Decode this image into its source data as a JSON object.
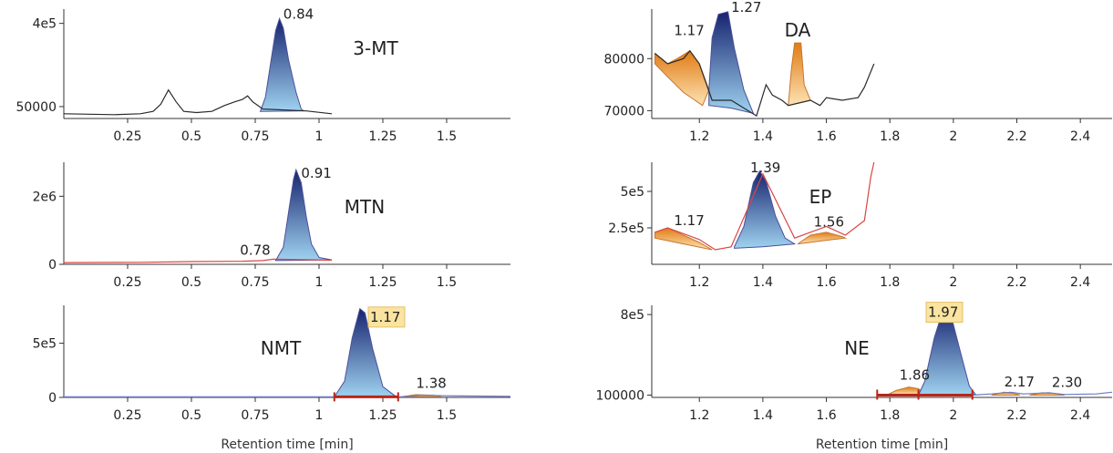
{
  "colors": {
    "blue_dark": "#16236e",
    "blue_light": "#9fd2f0",
    "orange_dark": "#e07b14",
    "orange_light": "#fde3b4",
    "trace_black": "#2a2a2a",
    "trace_red": "#d94646",
    "trace_blue": "#6b78c4",
    "integration_red": "#b8261a",
    "highlight_bg": "#fbe3a0"
  },
  "chart_data": [
    {
      "type": "line",
      "panel": "left-top",
      "compound": "3-MT",
      "xlim": [
        0,
        1.75
      ],
      "ylim": [
        0,
        460000
      ],
      "xticks": [
        "0.25",
        "0.5",
        "0.75",
        "1",
        "1.25",
        "1.5"
      ],
      "yticks": [
        {
          "value": 50000,
          "label": "50000"
        },
        {
          "value": 400000,
          "label": "4e5"
        }
      ],
      "trace_color": "black",
      "trace": [
        [
          0,
          20000
        ],
        [
          0.1,
          18000
        ],
        [
          0.2,
          16000
        ],
        [
          0.3,
          20000
        ],
        [
          0.35,
          30000
        ],
        [
          0.38,
          60000
        ],
        [
          0.41,
          120000
        ],
        [
          0.44,
          70000
        ],
        [
          0.47,
          30000
        ],
        [
          0.52,
          25000
        ],
        [
          0.58,
          30000
        ],
        [
          0.63,
          55000
        ],
        [
          0.67,
          70000
        ],
        [
          0.7,
          80000
        ],
        [
          0.72,
          95000
        ],
        [
          0.74,
          70000
        ],
        [
          0.78,
          40000
        ],
        [
          0.95,
          32000
        ],
        [
          1.05,
          20000
        ]
      ],
      "peaks": [
        {
          "label": "0.84",
          "color": "blue",
          "points": [
            [
              0.77,
              30000
            ],
            [
              0.79,
              90000
            ],
            [
              0.81,
              230000
            ],
            [
              0.83,
              370000
            ],
            [
              0.845,
              420000
            ],
            [
              0.86,
              380000
            ],
            [
              0.88,
              250000
            ],
            [
              0.91,
              110000
            ],
            [
              0.93,
              40000
            ],
            [
              0.94,
              32000
            ]
          ],
          "label_at": [
            0.86,
            420000
          ],
          "highlight": false
        }
      ],
      "xlabel": ""
    },
    {
      "type": "line",
      "panel": "left-middle",
      "compound": "MTN",
      "xlim": [
        0,
        1.75
      ],
      "ylim": [
        0,
        3000000
      ],
      "xticks": [
        "0.25",
        "0.5",
        "0.75",
        "1",
        "1.25",
        "1.5"
      ],
      "yticks": [
        {
          "value": 0,
          "label": "0"
        },
        {
          "value": 2000000,
          "label": "2e6"
        }
      ],
      "trace_color": "red",
      "trace": [
        [
          0,
          50000
        ],
        [
          0.3,
          60000
        ],
        [
          0.5,
          80000
        ],
        [
          0.7,
          90000
        ],
        [
          0.78,
          110000
        ],
        [
          0.82,
          150000
        ],
        [
          1.0,
          130000
        ],
        [
          1.05,
          120000
        ]
      ],
      "peaks": [
        {
          "label": "0.91",
          "color": "blue",
          "points": [
            [
              0.83,
              110000
            ],
            [
              0.86,
              500000
            ],
            [
              0.88,
              1500000
            ],
            [
              0.9,
              2500000
            ],
            [
              0.91,
              2780000
            ],
            [
              0.93,
              2400000
            ],
            [
              0.95,
              1400000
            ],
            [
              0.97,
              600000
            ],
            [
              1.0,
              200000
            ],
            [
              1.05,
              130000
            ]
          ],
          "label_at": [
            0.93,
            2550000
          ],
          "highlight": false
        }
      ],
      "extra_labels": [
        {
          "text": "0.78",
          "at": [
            0.75,
            280000
          ]
        }
      ],
      "xlabel": ""
    },
    {
      "type": "line",
      "panel": "left-bottom",
      "compound": "NMT",
      "xlim": [
        0,
        1.75
      ],
      "ylim": [
        0,
        850000
      ],
      "xticks": [
        "0.25",
        "0.5",
        "0.75",
        "1",
        "1.25",
        "1.5"
      ],
      "yticks": [
        {
          "value": 0,
          "label": "0"
        },
        {
          "value": 500000,
          "label": "5e5"
        }
      ],
      "trace_color": "blue",
      "trace": [
        [
          0,
          5000
        ],
        [
          1.0,
          5000
        ],
        [
          1.32,
          5000
        ],
        [
          1.4,
          20000
        ],
        [
          1.5,
          15000
        ],
        [
          1.75,
          10000
        ]
      ],
      "peaks": [
        {
          "label": "1.17",
          "color": "blue",
          "points": [
            [
              1.06,
              5000
            ],
            [
              1.1,
              150000
            ],
            [
              1.13,
              550000
            ],
            [
              1.16,
              820000
            ],
            [
              1.18,
              780000
            ],
            [
              1.21,
              450000
            ],
            [
              1.25,
              100000
            ],
            [
              1.3,
              10000
            ]
          ],
          "label_at": [
            1.2,
            700000
          ],
          "highlight": true
        },
        {
          "label": "1.38",
          "color": "orange",
          "points": [
            [
              1.32,
              5000
            ],
            [
              1.38,
              25000
            ],
            [
              1.45,
              20000
            ],
            [
              1.48,
              5000
            ]
          ],
          "label_at": [
            1.38,
            90000
          ],
          "highlight": false
        }
      ],
      "xlabel": "Retention time [min]"
    },
    {
      "type": "line",
      "panel": "right-top",
      "compound": "DA",
      "xlim": [
        1.05,
        2.5
      ],
      "ylim": [
        68500,
        89500
      ],
      "xticks": [
        "1.2",
        "1.4",
        "1.6",
        "1.8",
        "2",
        "2.2",
        "2.4"
      ],
      "yticks": [
        {
          "value": 70000,
          "label": "70000"
        },
        {
          "value": 80000,
          "label": "80000"
        }
      ],
      "trace_color": "black",
      "trace": [
        [
          1.06,
          81000
        ],
        [
          1.1,
          79000
        ],
        [
          1.15,
          80000
        ],
        [
          1.17,
          81500
        ],
        [
          1.2,
          79000
        ],
        [
          1.24,
          72000
        ],
        [
          1.3,
          72000
        ],
        [
          1.38,
          69000
        ],
        [
          1.4,
          73000
        ],
        [
          1.41,
          75000
        ],
        [
          1.43,
          73000
        ],
        [
          1.46,
          72000
        ],
        [
          1.48,
          71000
        ],
        [
          1.55,
          72000
        ],
        [
          1.58,
          71000
        ],
        [
          1.6,
          72500
        ],
        [
          1.65,
          72000
        ],
        [
          1.7,
          72500
        ],
        [
          1.72,
          74500
        ],
        [
          1.75,
          79000
        ]
      ],
      "peaks": [
        {
          "label": "1.17",
          "color": "orange",
          "points": [
            [
              1.06,
              81000
            ],
            [
              1.1,
              79000
            ],
            [
              1.13,
              80000
            ],
            [
              1.17,
              81500
            ],
            [
              1.2,
              79000
            ],
            [
              1.23,
              74000
            ],
            [
              1.21,
              71000
            ],
            [
              1.15,
              73500
            ],
            [
              1.1,
              76500
            ],
            [
              1.06,
              79000
            ]
          ],
          "label_at": [
            1.12,
            84500
          ],
          "highlight": false
        },
        {
          "label": "1.27",
          "color": "blue",
          "points": [
            [
              1.23,
              74000
            ],
            [
              1.24,
              84000
            ],
            [
              1.26,
              88500
            ],
            [
              1.29,
              89000
            ],
            [
              1.31,
              82000
            ],
            [
              1.34,
              74000
            ],
            [
              1.37,
              69500
            ],
            [
              1.3,
              70500
            ],
            [
              1.23,
              71000
            ]
          ],
          "label_at": [
            1.3,
            89000
          ],
          "highlight": false
        },
        {
          "label": "",
          "color": "orange",
          "points": [
            [
              1.48,
              71000
            ],
            [
              1.49,
              78000
            ],
            [
              1.5,
              83000
            ],
            [
              1.52,
              83000
            ],
            [
              1.53,
              75000
            ],
            [
              1.55,
              72000
            ],
            [
              1.48,
              71000
            ]
          ],
          "label_at": [
            1.5,
            84000
          ],
          "highlight": false
        }
      ],
      "xlabel": ""
    },
    {
      "type": "line",
      "panel": "right-middle",
      "compound": "EP",
      "xlim": [
        1.05,
        2.5
      ],
      "ylim": [
        0,
        700000
      ],
      "xticks": [
        "1.2",
        "1.4",
        "1.6",
        "1.8",
        "2",
        "2.2",
        "2.4"
      ],
      "yticks": [
        {
          "value": 250000,
          "label": "2.5e5"
        },
        {
          "value": 500000,
          "label": "5e5"
        }
      ],
      "trace_color": "red",
      "trace": [
        [
          1.06,
          220000
        ],
        [
          1.1,
          250000
        ],
        [
          1.2,
          170000
        ],
        [
          1.25,
          100000
        ],
        [
          1.3,
          120000
        ],
        [
          1.4,
          620000
        ],
        [
          1.5,
          180000
        ],
        [
          1.6,
          260000
        ],
        [
          1.66,
          200000
        ],
        [
          1.72,
          300000
        ],
        [
          1.74,
          600000
        ],
        [
          1.75,
          700000
        ]
      ],
      "peaks": [
        {
          "label": "1.17",
          "color": "orange",
          "points": [
            [
              1.06,
              220000
            ],
            [
              1.1,
              250000
            ],
            [
              1.15,
              200000
            ],
            [
              1.2,
              150000
            ],
            [
              1.24,
              100000
            ],
            [
              1.15,
              140000
            ],
            [
              1.06,
              180000
            ]
          ],
          "label_at": [
            1.12,
            270000
          ],
          "highlight": false
        },
        {
          "label": "1.39",
          "color": "blue",
          "points": [
            [
              1.31,
              120000
            ],
            [
              1.34,
              260000
            ],
            [
              1.37,
              560000
            ],
            [
              1.39,
              640000
            ],
            [
              1.41,
              570000
            ],
            [
              1.44,
              330000
            ],
            [
              1.47,
              180000
            ],
            [
              1.5,
              140000
            ],
            [
              1.4,
              120000
            ],
            [
              1.31,
              110000
            ]
          ],
          "label_at": [
            1.36,
            630000
          ],
          "highlight": false
        },
        {
          "label": "1.56",
          "color": "orange",
          "points": [
            [
              1.51,
              140000
            ],
            [
              1.55,
              200000
            ],
            [
              1.6,
              220000
            ],
            [
              1.65,
              190000
            ],
            [
              1.66,
              180000
            ],
            [
              1.6,
              165000
            ],
            [
              1.51,
              140000
            ]
          ],
          "label_at": [
            1.56,
            260000
          ],
          "highlight": false
        }
      ],
      "xlabel": ""
    },
    {
      "type": "line",
      "panel": "right-bottom",
      "compound": "NE",
      "xlim": [
        1.05,
        2.5
      ],
      "ylim": [
        80000,
        880000
      ],
      "xticks": [
        "1.2",
        "1.4",
        "1.6",
        "1.8",
        "2",
        "2.2",
        "2.4"
      ],
      "yticks": [
        {
          "value": 100000,
          "label": "100000"
        },
        {
          "value": 800000,
          "label": "8e5"
        }
      ],
      "trace_color": "blue",
      "trace": [
        [
          1.76,
          100000
        ],
        [
          2.06,
          100000
        ],
        [
          2.12,
          110000
        ],
        [
          2.18,
          125000
        ],
        [
          2.22,
          110000
        ],
        [
          2.3,
          120000
        ],
        [
          2.35,
          105000
        ],
        [
          2.45,
          110000
        ],
        [
          2.5,
          125000
        ]
      ],
      "peaks": [
        {
          "label": "1.86",
          "color": "orange",
          "points": [
            [
              1.79,
              100000
            ],
            [
              1.82,
              140000
            ],
            [
              1.86,
              170000
            ],
            [
              1.89,
              155000
            ],
            [
              1.91,
              110000
            ],
            [
              1.79,
              100000
            ]
          ],
          "label_at": [
            1.83,
            235000
          ],
          "highlight": false
        },
        {
          "label": "1.97",
          "color": "blue",
          "points": [
            [
              1.89,
              100000
            ],
            [
              1.91,
              220000
            ],
            [
              1.94,
              600000
            ],
            [
              1.97,
              860000
            ],
            [
              1.99,
              820000
            ],
            [
              2.02,
              500000
            ],
            [
              2.05,
              180000
            ],
            [
              2.07,
              105000
            ],
            [
              1.89,
              100000
            ]
          ],
          "label_at": [
            1.92,
            780000
          ],
          "highlight": true
        },
        {
          "label": "2.17",
          "color": "orange",
          "points": [
            [
              2.12,
              100000
            ],
            [
              2.16,
              125000
            ],
            [
              2.19,
              115000
            ],
            [
              2.21,
              100000
            ]
          ],
          "label_at": [
            2.16,
            175000
          ],
          "highlight": false
        },
        {
          "label": "2.30",
          "color": "orange",
          "points": [
            [
              2.24,
              100000
            ],
            [
              2.28,
              120000
            ],
            [
              2.32,
              115000
            ],
            [
              2.35,
              100000
            ]
          ],
          "label_at": [
            2.31,
            170000
          ],
          "highlight": false
        }
      ],
      "xlabel": "Retention time [min]"
    }
  ]
}
